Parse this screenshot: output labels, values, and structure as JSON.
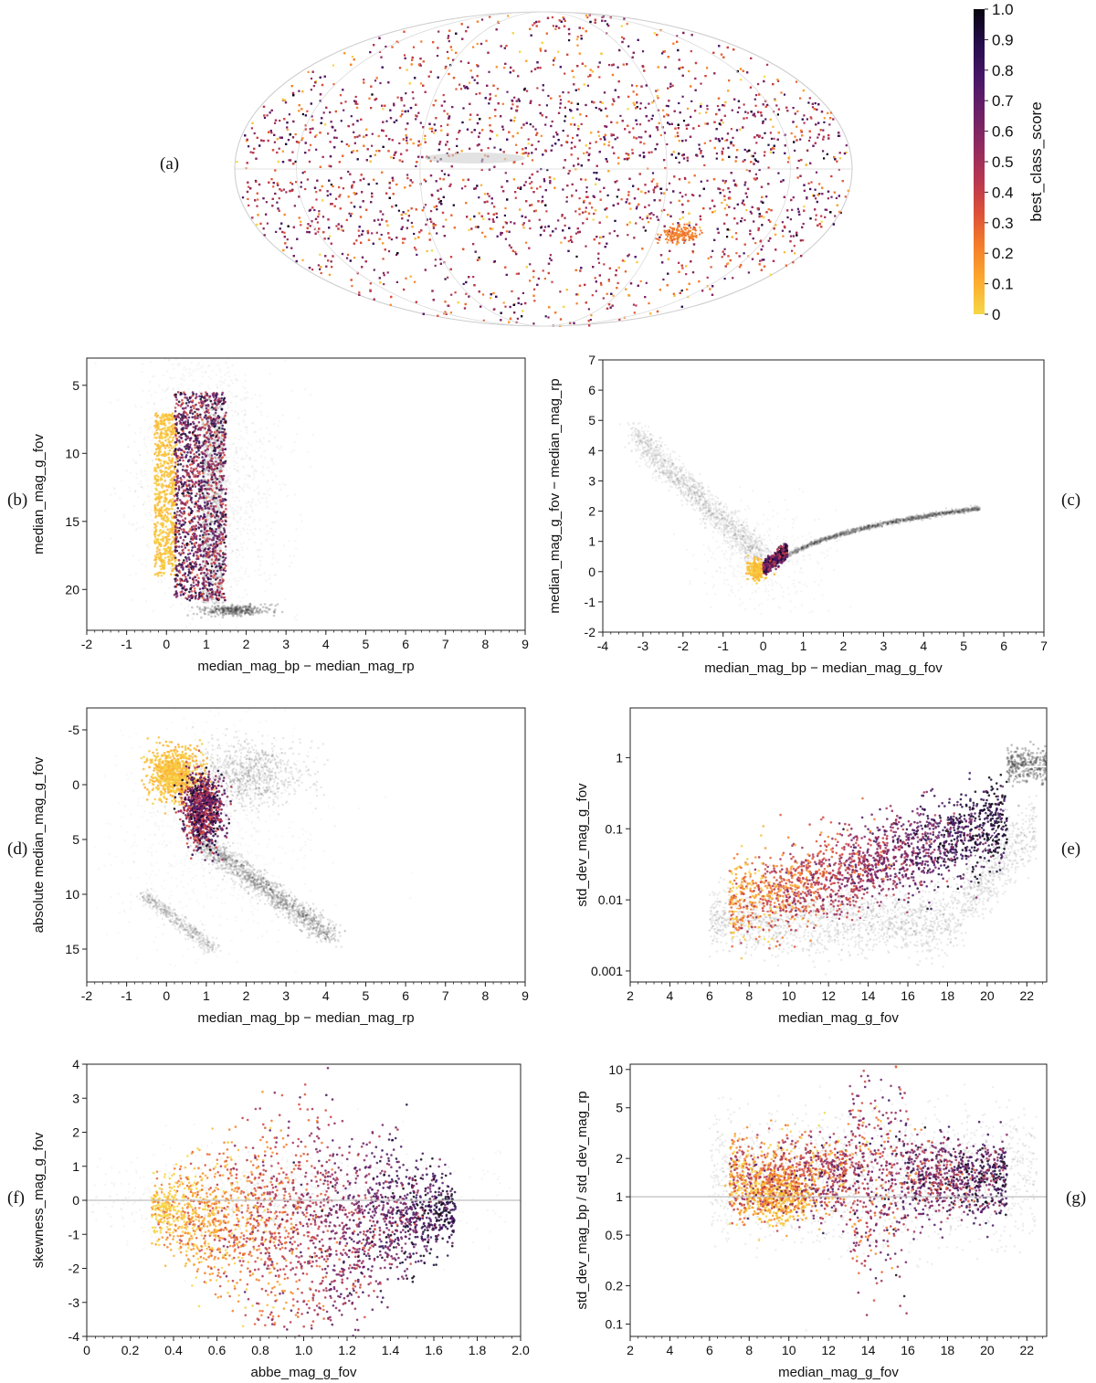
{
  "colors": {
    "colormap": [
      "#f6d746",
      "#fcaa2f",
      "#f47e2a",
      "#dc5039",
      "#b63550",
      "#8e2a60",
      "#6a1f67",
      "#461667",
      "#250d4a",
      "#08050f"
    ],
    "background_density": "#333333",
    "reference_line": "#bfbfbf",
    "median_curve": "#ffffff"
  },
  "colorbar": {
    "label": "best_class_score",
    "ticks": [
      "0",
      "0.1",
      "0.2",
      "0.3",
      "0.4",
      "0.5",
      "0.6",
      "0.7",
      "0.8",
      "0.9",
      "1.0"
    ],
    "range": [
      0,
      1
    ]
  },
  "chart_data": [
    {
      "panel": "(a)",
      "type": "scatter",
      "title": "",
      "projection": "Mollweide all-sky map",
      "xlabel": "",
      "ylabel": "",
      "color_by": "best_class_score",
      "features": [
        "Galactic plane band largely empty (grey)",
        "Magellanic Clouds below plane"
      ]
    },
    {
      "panel": "(b)",
      "type": "scatter",
      "xlabel": "median_mag_bp − median_mag_rp",
      "ylabel": "median_mag_g_fov",
      "xlim": [
        -2,
        9
      ],
      "ylim": [
        3,
        23
      ],
      "yinverted": true,
      "xticks": [
        "-2",
        "-1",
        "0",
        "1",
        "2",
        "3",
        "4",
        "5",
        "6",
        "7",
        "8",
        "9"
      ],
      "yticks": [
        "5",
        "10",
        "15",
        "20"
      ],
      "classified_extent": {
        "x": [
          0.2,
          1.5
        ],
        "y": [
          5.5,
          20.8
        ]
      },
      "low_score_extent": {
        "x": [
          -0.3,
          0.4
        ],
        "y": [
          7,
          19
        ]
      }
    },
    {
      "panel": "(c)",
      "type": "scatter",
      "xlabel": "median_mag_bp − median_mag_g_fov",
      "ylabel": "median_mag_g_fov − median_mag_rp",
      "xlim": [
        -4,
        7
      ],
      "ylim": [
        -2,
        7
      ],
      "xticks": [
        "-4",
        "-3",
        "-2",
        "-1",
        "0",
        "1",
        "2",
        "3",
        "4",
        "5",
        "6",
        "7"
      ],
      "yticks": [
        "-2",
        "-1",
        "0",
        "1",
        "2",
        "3",
        "4",
        "5",
        "6",
        "7"
      ],
      "classified_extent": {
        "x": [
          -0.3,
          0.6
        ],
        "y": [
          -0.2,
          0.9
        ]
      }
    },
    {
      "panel": "(d)",
      "type": "scatter",
      "xlabel": "median_mag_bp − median_mag_rp",
      "ylabel": "absolute median_mag_g_fov",
      "xlim": [
        -2,
        9
      ],
      "ylim": [
        -7,
        18
      ],
      "yinverted": true,
      "xticks": [
        "-2",
        "-1",
        "0",
        "1",
        "2",
        "3",
        "4",
        "5",
        "6",
        "7",
        "8",
        "9"
      ],
      "yticks": [
        "-5",
        "0",
        "5",
        "10",
        "15"
      ],
      "classified_extent": {
        "x": [
          0,
          1.6
        ],
        "y": [
          -5,
          7
        ]
      }
    },
    {
      "panel": "(e)",
      "type": "scatter",
      "xlabel": "median_mag_g_fov",
      "ylabel": "std_dev_mag_g_fov",
      "yscale": "log",
      "xlim": [
        2,
        23
      ],
      "ylim": [
        0.0007,
        5
      ],
      "xticks": [
        "2",
        "4",
        "6",
        "8",
        "10",
        "12",
        "14",
        "16",
        "18",
        "20",
        "22"
      ],
      "yticks": [
        "0.001",
        "0.01",
        "0.1",
        "1"
      ],
      "median_curve": {
        "x": [
          6.5,
          8,
          9,
          10,
          10.6,
          11,
          11.4,
          12,
          13,
          14,
          15,
          16,
          17,
          18,
          19,
          20,
          20.5,
          20.8,
          21.3,
          22,
          23
        ],
        "y": [
          0.0075,
          0.007,
          0.0065,
          0.0052,
          0.0048,
          0.0058,
          0.0047,
          0.0055,
          0.0047,
          0.005,
          0.0058,
          0.0075,
          0.011,
          0.017,
          0.03,
          0.06,
          0.09,
          0.12,
          0.55,
          0.75,
          0.75
        ]
      }
    },
    {
      "panel": "(f)",
      "type": "scatter",
      "xlabel": "abbe_mag_g_fov",
      "ylabel": "skewness_mag_g_fov",
      "xlim": [
        0,
        2
      ],
      "ylim": [
        -4,
        4
      ],
      "xticks": [
        "0",
        "0.2",
        "0.4",
        "0.6",
        "0.8",
        "1.0",
        "1.2",
        "1.4",
        "1.6",
        "1.8",
        "2.0"
      ],
      "yticks": [
        "-4",
        "-3",
        "-2",
        "-1",
        "0",
        "1",
        "2",
        "3",
        "4"
      ],
      "reference_line_y": 0
    },
    {
      "panel": "(g)",
      "type": "scatter",
      "xlabel": "median_mag_g_fov",
      "ylabel": "std_dev_mag_bp / std_dev_mag_rp",
      "yscale": "log",
      "xlim": [
        2,
        23
      ],
      "ylim": [
        0.08,
        11
      ],
      "xticks": [
        "2",
        "4",
        "6",
        "8",
        "10",
        "12",
        "14",
        "16",
        "18",
        "20",
        "22"
      ],
      "yticks": [
        "0.1",
        "0.2",
        "0.5",
        "1",
        "2",
        "5",
        "10"
      ],
      "reference_line_y": 1
    }
  ],
  "panel_labels": [
    "(a)",
    "(b)",
    "(c)",
    "(d)",
    "(e)",
    "(f)",
    "(g)"
  ]
}
